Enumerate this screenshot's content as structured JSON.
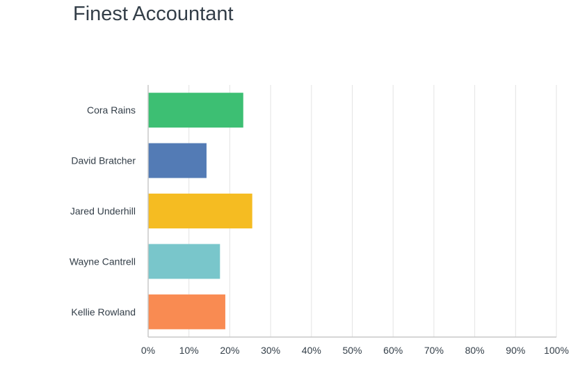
{
  "chart_data": {
    "type": "bar",
    "orientation": "horizontal",
    "title": "Finest Accountant",
    "categories": [
      "Cora Rains",
      "David Bratcher",
      "Jared Underhill",
      "Wayne Cantrell",
      "Kellie Rowland"
    ],
    "values": [
      23.3,
      14.3,
      25.5,
      17.6,
      18.9
    ],
    "colors": [
      "#3dbf73",
      "#537bb5",
      "#f5bc22",
      "#79c6cb",
      "#f98b52"
    ],
    "xlim": [
      0,
      100
    ],
    "x_ticks": [
      "0%",
      "10%",
      "20%",
      "30%",
      "40%",
      "50%",
      "60%",
      "70%",
      "80%",
      "90%",
      "100%"
    ],
    "grid": true
  }
}
